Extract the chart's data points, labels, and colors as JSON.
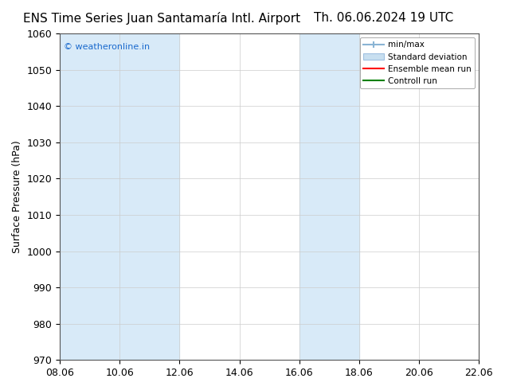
{
  "title_left": "ENS Time Series Juan Santamaría Intl. Airport",
  "title_right": "Th. 06.06.2024 19 UTC",
  "ylabel": "Surface Pressure (hPa)",
  "ylim": [
    970,
    1060
  ],
  "yticks": [
    970,
    980,
    990,
    1000,
    1010,
    1020,
    1030,
    1040,
    1050,
    1060
  ],
  "xlim_start": "2024-06-08",
  "xlim_end": "2024-06-22",
  "xtick_labels": [
    "08.06",
    "10.06",
    "12.06",
    "14.06",
    "16.06",
    "18.06",
    "20.06",
    "22.06"
  ],
  "xtick_positions_days": [
    0,
    2,
    4,
    6,
    8,
    10,
    12,
    14
  ],
  "blue_bands": [
    {
      "start_day": 0,
      "end_day": 2
    },
    {
      "start_day": 2,
      "end_day": 4
    },
    {
      "start_day": 8,
      "end_day": 10
    }
  ],
  "band_color": "#d8eaf8",
  "background_color": "#ffffff",
  "watermark": "© weatheronline.in",
  "watermark_color": "#1a6acd",
  "legend_items": [
    "min/max",
    "Standard deviation",
    "Ensemble mean run",
    "Controll run"
  ],
  "legend_colors": [
    "#a0c8e8",
    "#c0d8f0",
    "#ff0000",
    "#008000"
  ],
  "title_fontsize": 11,
  "tick_fontsize": 9,
  "ylabel_fontsize": 9
}
